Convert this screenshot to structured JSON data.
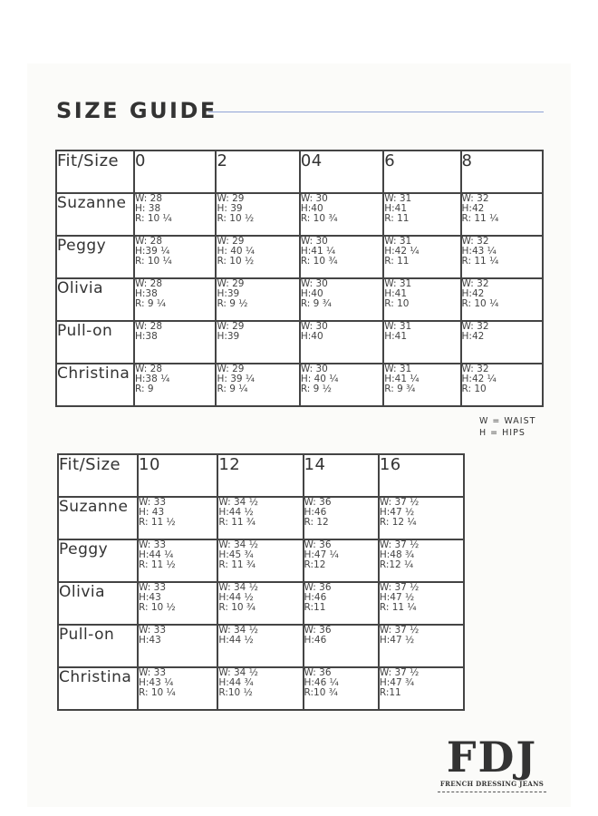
{
  "title": "SIZE GUIDE",
  "colors": {
    "rule": "#8fa3d6",
    "border": "#444444"
  },
  "table1": {
    "header": [
      "Fit/Size",
      "0",
      "2",
      "04",
      "6",
      "8"
    ],
    "rows": [
      {
        "name": "Suzanne",
        "cells": [
          [
            "W: 28",
            "H: 38",
            "R: 10 ¼"
          ],
          [
            "W: 29",
            "H: 39",
            "R: 10 ½"
          ],
          [
            "W: 30",
            "H:40",
            "R: 10 ¾"
          ],
          [
            "W: 31",
            "H:41",
            "R: 11"
          ],
          [
            "W: 32",
            "H:42",
            "R: 11 ¼"
          ]
        ]
      },
      {
        "name": "Peggy",
        "cells": [
          [
            "W: 28",
            "H:39 ¼",
            "R: 10 ¼"
          ],
          [
            "W: 29",
            "H: 40 ¼",
            "R: 10 ½"
          ],
          [
            "W: 30",
            "H:41 ¼",
            "R: 10 ¾"
          ],
          [
            "W: 31",
            "H:42 ¼",
            "R: 11"
          ],
          [
            "W: 32",
            "H:43 ¼",
            "R: 11 ¼"
          ]
        ]
      },
      {
        "name": "Olivia",
        "cells": [
          [
            "W: 28",
            "H:38",
            "R: 9 ¼"
          ],
          [
            "W: 29",
            "H:39",
            "R: 9 ½"
          ],
          [
            "W: 30",
            "H:40",
            "R: 9 ¾"
          ],
          [
            "W: 31",
            "H:41",
            "R: 10"
          ],
          [
            "W: 32",
            "H:42",
            "R: 10 ¼"
          ]
        ]
      },
      {
        "name": "Pull-on",
        "cells": [
          [
            "W: 28",
            "H:38"
          ],
          [
            "W: 29",
            "H:39"
          ],
          [
            "W: 30",
            "H:40"
          ],
          [
            "W: 31",
            "H:41"
          ],
          [
            "W: 32",
            "H:42"
          ]
        ]
      },
      {
        "name": "Christina",
        "cells": [
          [
            "W: 28",
            "H:38 ¼",
            "R: 9"
          ],
          [
            "W: 29",
            "H: 39 ¼",
            "R: 9 ¼"
          ],
          [
            "W: 30",
            "H: 40 ¼",
            "R: 9 ½"
          ],
          [
            "W: 31",
            "H:41 ¼",
            "R: 9 ¾"
          ],
          [
            "W: 32",
            "H:42 ¼",
            "R: 10"
          ]
        ]
      }
    ]
  },
  "legend": [
    "W = WAIST",
    "H = HIPS"
  ],
  "table2": {
    "header": [
      "Fit/Size",
      "10",
      "12",
      "14",
      "16"
    ],
    "rows": [
      {
        "name": "Suzanne",
        "cells": [
          [
            "W: 33",
            "H: 43",
            "R: 11 ½"
          ],
          [
            "W: 34 ½",
            "H:44 ½",
            "R: 11 ¾"
          ],
          [
            "W: 36",
            "H:46",
            "R: 12"
          ],
          [
            "W: 37 ½",
            "H:47 ½",
            "R: 12 ¼"
          ]
        ]
      },
      {
        "name": "Peggy",
        "cells": [
          [
            "W: 33",
            "H:44 ¼",
            "R: 11 ½"
          ],
          [
            "W: 34 ½",
            "H:45 ¾",
            "R: 11 ¾"
          ],
          [
            "W: 36",
            "H:47 ¼",
            "R:12"
          ],
          [
            "W: 37 ½",
            "H:48 ¾",
            "R:12 ¼"
          ]
        ]
      },
      {
        "name": "Olivia",
        "cells": [
          [
            "W: 33",
            "H:43",
            "R: 10 ½"
          ],
          [
            "W: 34 ½",
            "H:44 ½",
            "R: 10 ¾"
          ],
          [
            "W: 36",
            "H:46",
            "R:11"
          ],
          [
            "W: 37 ½",
            "H:47 ½",
            "R: 11 ¼"
          ]
        ]
      },
      {
        "name": "Pull-on",
        "cells": [
          [
            "W: 33",
            "H:43"
          ],
          [
            "W: 34 ½",
            "H:44 ½"
          ],
          [
            "W: 36",
            "H:46"
          ],
          [
            "W: 37 ½",
            "H:47 ½"
          ]
        ]
      },
      {
        "name": "Christina",
        "cells": [
          [
            "W: 33",
            "H:43 ¼",
            "R: 10 ¼"
          ],
          [
            "W: 34 ½",
            "H:44 ¾",
            "R:10 ½"
          ],
          [
            "W: 36",
            "H:46 ¼",
            "R:10 ¾"
          ],
          [
            "W: 37 ½",
            "H:47 ¾",
            "R:11"
          ]
        ]
      }
    ]
  },
  "logo": {
    "mark": "FDJ",
    "tagline": "FRENCH DRESSING JEANS"
  }
}
